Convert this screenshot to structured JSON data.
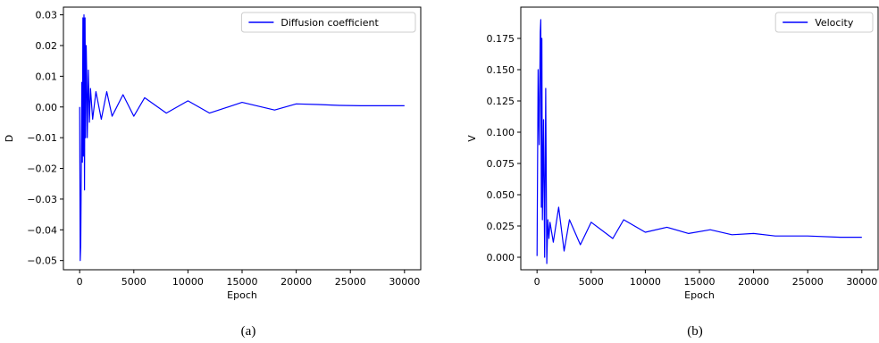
{
  "chart_data": [
    {
      "type": "line",
      "caption": "(a)",
      "xlabel": "Epoch",
      "ylabel": "D",
      "xlim": [
        -1500,
        31500
      ],
      "ylim": [
        -0.053,
        0.0325
      ],
      "xticks": [
        0,
        5000,
        10000,
        15000,
        20000,
        25000,
        30000
      ],
      "xtick_labels": [
        "0",
        "5000",
        "10000",
        "15000",
        "20000",
        "25000",
        "30000"
      ],
      "yticks": [
        -0.05,
        -0.04,
        -0.03,
        -0.02,
        -0.01,
        0.0,
        0.01,
        0.02,
        0.03
      ],
      "ytick_labels": [
        "−0.05",
        "−0.04",
        "−0.03",
        "−0.02",
        "−0.01",
        "0.00",
        "0.01",
        "0.02",
        "0.03"
      ],
      "grid": false,
      "legend_position": "top-right",
      "series": [
        {
          "name": "Diffusion coefficient",
          "color": "#0000ff",
          "x": [
            0,
            50,
            100,
            150,
            200,
            250,
            300,
            350,
            400,
            450,
            500,
            550,
            600,
            650,
            700,
            800,
            900,
            1000,
            1200,
            1500,
            2000,
            2500,
            3000,
            4000,
            5000,
            6000,
            8000,
            10000,
            12000,
            15000,
            18000,
            20000,
            22000,
            24000,
            26000,
            28000,
            30000
          ],
          "y": [
            0.0,
            -0.05,
            -0.045,
            -0.02,
            0.008,
            -0.018,
            0.029,
            -0.016,
            0.03,
            -0.027,
            0.029,
            -0.01,
            0.02,
            0.01,
            -0.01,
            0.012,
            -0.005,
            0.006,
            -0.004,
            0.005,
            -0.004,
            0.005,
            -0.003,
            0.004,
            -0.003,
            0.003,
            -0.002,
            0.002,
            -0.002,
            0.0015,
            -0.001,
            0.001,
            0.0008,
            0.0005,
            0.0004,
            0.0004,
            0.0004
          ]
        }
      ]
    },
    {
      "type": "line",
      "caption": "(b)",
      "xlabel": "Epoch",
      "ylabel": "V",
      "xlim": [
        -1500,
        31500
      ],
      "ylim": [
        -0.01,
        0.2
      ],
      "xticks": [
        0,
        5000,
        10000,
        15000,
        20000,
        25000,
        30000
      ],
      "xtick_labels": [
        "0",
        "5000",
        "10000",
        "15000",
        "20000",
        "25000",
        "30000"
      ],
      "yticks": [
        0.0,
        0.025,
        0.05,
        0.075,
        0.1,
        0.125,
        0.15,
        0.175
      ],
      "ytick_labels": [
        "0.000",
        "0.025",
        "0.050",
        "0.075",
        "0.100",
        "0.125",
        "0.150",
        "0.175"
      ],
      "grid": false,
      "legend_position": "top-right",
      "series": [
        {
          "name": "Velocity",
          "color": "#0000ff",
          "x": [
            0,
            100,
            200,
            300,
            350,
            400,
            450,
            500,
            600,
            700,
            800,
            900,
            1000,
            1100,
            1200,
            1500,
            2000,
            2500,
            3000,
            4000,
            5000,
            7000,
            8000,
            10000,
            12000,
            14000,
            16000,
            18000,
            20000,
            22000,
            25000,
            28000,
            30000
          ],
          "y": [
            0.001,
            0.15,
            0.09,
            0.18,
            0.19,
            0.04,
            0.175,
            0.03,
            0.11,
            0.0,
            0.135,
            -0.005,
            0.03,
            0.015,
            0.028,
            0.012,
            0.04,
            0.005,
            0.03,
            0.01,
            0.028,
            0.015,
            0.03,
            0.02,
            0.024,
            0.019,
            0.022,
            0.018,
            0.019,
            0.017,
            0.017,
            0.016,
            0.016
          ]
        }
      ]
    }
  ]
}
